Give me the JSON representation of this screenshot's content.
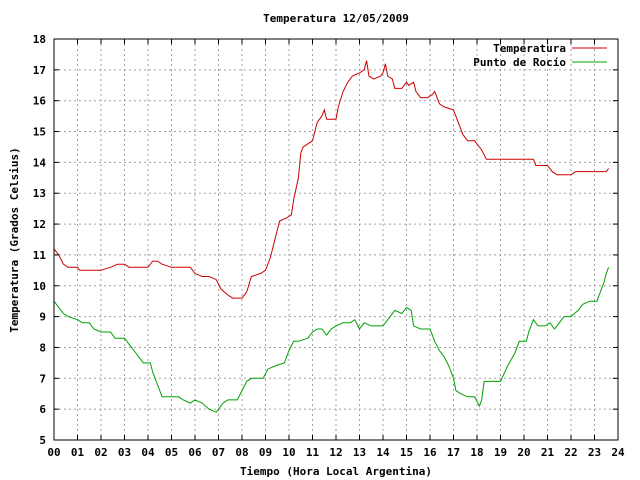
{
  "chart_data": {
    "type": "line",
    "title": "Temperatura 12/05/2009",
    "xlabel": "Tiempo (Hora Local Argentina)",
    "ylabel": "Temperatura (Grados Celsius)",
    "xlim": [
      0,
      24
    ],
    "ylim": [
      5,
      18
    ],
    "xticks": [
      "00",
      "01",
      "02",
      "03",
      "04",
      "05",
      "06",
      "07",
      "08",
      "09",
      "10",
      "11",
      "12",
      "13",
      "14",
      "15",
      "16",
      "17",
      "18",
      "19",
      "20",
      "21",
      "22",
      "23",
      "24"
    ],
    "yticks": [
      5,
      6,
      7,
      8,
      9,
      10,
      11,
      12,
      13,
      14,
      15,
      16,
      17,
      18
    ],
    "grid": true,
    "legend_position": "top-right",
    "series": [
      {
        "name": "Temperatura",
        "color": "#cc0000",
        "points": [
          [
            0,
            11.2
          ],
          [
            0.2,
            11.0
          ],
          [
            0.4,
            10.7
          ],
          [
            0.6,
            10.6
          ],
          [
            1.0,
            10.6
          ],
          [
            1.1,
            10.5
          ],
          [
            2.0,
            10.5
          ],
          [
            2.4,
            10.6
          ],
          [
            2.7,
            10.7
          ],
          [
            3.0,
            10.7
          ],
          [
            3.2,
            10.6
          ],
          [
            4.0,
            10.6
          ],
          [
            4.2,
            10.8
          ],
          [
            4.4,
            10.8
          ],
          [
            4.6,
            10.7
          ],
          [
            5.0,
            10.6
          ],
          [
            5.4,
            10.6
          ],
          [
            5.8,
            10.6
          ],
          [
            6.0,
            10.4
          ],
          [
            6.3,
            10.3
          ],
          [
            6.6,
            10.3
          ],
          [
            6.9,
            10.2
          ],
          [
            7.1,
            9.9
          ],
          [
            7.4,
            9.7
          ],
          [
            7.6,
            9.6
          ],
          [
            8.0,
            9.6
          ],
          [
            8.2,
            9.8
          ],
          [
            8.4,
            10.3
          ],
          [
            8.8,
            10.4
          ],
          [
            9.0,
            10.5
          ],
          [
            9.2,
            10.9
          ],
          [
            9.4,
            11.5
          ],
          [
            9.6,
            12.1
          ],
          [
            9.9,
            12.2
          ],
          [
            10.1,
            12.3
          ],
          [
            10.2,
            12.8
          ],
          [
            10.4,
            13.5
          ],
          [
            10.5,
            14.3
          ],
          [
            10.6,
            14.5
          ],
          [
            10.8,
            14.6
          ],
          [
            11.0,
            14.7
          ],
          [
            11.2,
            15.3
          ],
          [
            11.4,
            15.5
          ],
          [
            11.5,
            15.7
          ],
          [
            11.6,
            15.4
          ],
          [
            12.0,
            15.4
          ],
          [
            12.1,
            15.8
          ],
          [
            12.3,
            16.3
          ],
          [
            12.5,
            16.6
          ],
          [
            12.7,
            16.8
          ],
          [
            13.0,
            16.9
          ],
          [
            13.2,
            17.0
          ],
          [
            13.3,
            17.3
          ],
          [
            13.4,
            16.8
          ],
          [
            13.6,
            16.7
          ],
          [
            13.9,
            16.8
          ],
          [
            14.0,
            16.9
          ],
          [
            14.1,
            17.2
          ],
          [
            14.2,
            16.8
          ],
          [
            14.4,
            16.7
          ],
          [
            14.5,
            16.4
          ],
          [
            14.8,
            16.4
          ],
          [
            15.0,
            16.6
          ],
          [
            15.1,
            16.5
          ],
          [
            15.3,
            16.6
          ],
          [
            15.4,
            16.3
          ],
          [
            15.6,
            16.1
          ],
          [
            15.9,
            16.1
          ],
          [
            16.1,
            16.2
          ],
          [
            16.2,
            16.3
          ],
          [
            16.4,
            15.9
          ],
          [
            16.6,
            15.8
          ],
          [
            17.0,
            15.7
          ],
          [
            17.2,
            15.3
          ],
          [
            17.4,
            14.9
          ],
          [
            17.6,
            14.7
          ],
          [
            17.9,
            14.7
          ],
          [
            18.0,
            14.6
          ],
          [
            18.2,
            14.4
          ],
          [
            18.4,
            14.1
          ],
          [
            19.0,
            14.1
          ],
          [
            20.0,
            14.1
          ],
          [
            20.4,
            14.1
          ],
          [
            20.5,
            13.9
          ],
          [
            21.0,
            13.9
          ],
          [
            21.2,
            13.7
          ],
          [
            21.4,
            13.6
          ],
          [
            22.0,
            13.6
          ],
          [
            22.2,
            13.7
          ],
          [
            23.0,
            13.7
          ],
          [
            23.5,
            13.7
          ],
          [
            23.6,
            13.8
          ]
        ]
      },
      {
        "name": "Punto de Rocío",
        "color": "#00a000",
        "points": [
          [
            0,
            9.5
          ],
          [
            0.2,
            9.3
          ],
          [
            0.4,
            9.1
          ],
          [
            0.6,
            9.0
          ],
          [
            1.0,
            8.9
          ],
          [
            1.2,
            8.8
          ],
          [
            1.5,
            8.8
          ],
          [
            1.7,
            8.6
          ],
          [
            2.0,
            8.5
          ],
          [
            2.4,
            8.5
          ],
          [
            2.6,
            8.3
          ],
          [
            3.0,
            8.3
          ],
          [
            3.2,
            8.1
          ],
          [
            3.4,
            7.9
          ],
          [
            3.6,
            7.7
          ],
          [
            3.8,
            7.5
          ],
          [
            4.1,
            7.5
          ],
          [
            4.2,
            7.2
          ],
          [
            4.4,
            6.8
          ],
          [
            4.6,
            6.4
          ],
          [
            5.0,
            6.4
          ],
          [
            5.3,
            6.4
          ],
          [
            5.5,
            6.3
          ],
          [
            5.8,
            6.2
          ],
          [
            6.0,
            6.3
          ],
          [
            6.3,
            6.2
          ],
          [
            6.6,
            6.0
          ],
          [
            6.9,
            5.9
          ],
          [
            7.0,
            6.0
          ],
          [
            7.2,
            6.2
          ],
          [
            7.4,
            6.3
          ],
          [
            7.8,
            6.3
          ],
          [
            8.0,
            6.6
          ],
          [
            8.2,
            6.9
          ],
          [
            8.4,
            7.0
          ],
          [
            8.9,
            7.0
          ],
          [
            9.1,
            7.3
          ],
          [
            9.4,
            7.4
          ],
          [
            9.8,
            7.5
          ],
          [
            10.0,
            7.9
          ],
          [
            10.2,
            8.2
          ],
          [
            10.4,
            8.2
          ],
          [
            10.8,
            8.3
          ],
          [
            11.0,
            8.5
          ],
          [
            11.2,
            8.6
          ],
          [
            11.4,
            8.6
          ],
          [
            11.6,
            8.4
          ],
          [
            11.8,
            8.6
          ],
          [
            12.0,
            8.7
          ],
          [
            12.3,
            8.8
          ],
          [
            12.6,
            8.8
          ],
          [
            12.8,
            8.9
          ],
          [
            13.0,
            8.6
          ],
          [
            13.2,
            8.8
          ],
          [
            13.5,
            8.7
          ],
          [
            14.0,
            8.7
          ],
          [
            14.3,
            9.0
          ],
          [
            14.5,
            9.2
          ],
          [
            14.8,
            9.1
          ],
          [
            15.0,
            9.3
          ],
          [
            15.2,
            9.2
          ],
          [
            15.3,
            8.7
          ],
          [
            15.6,
            8.6
          ],
          [
            16.0,
            8.6
          ],
          [
            16.2,
            8.2
          ],
          [
            16.4,
            7.9
          ],
          [
            16.6,
            7.7
          ],
          [
            16.8,
            7.4
          ],
          [
            17.0,
            7.0
          ],
          [
            17.1,
            6.6
          ],
          [
            17.3,
            6.5
          ],
          [
            17.6,
            6.4
          ],
          [
            17.9,
            6.4
          ],
          [
            18.1,
            6.1
          ],
          [
            18.2,
            6.3
          ],
          [
            18.3,
            6.9
          ],
          [
            19.0,
            6.9
          ],
          [
            19.3,
            7.4
          ],
          [
            19.6,
            7.8
          ],
          [
            19.8,
            8.2
          ],
          [
            20.1,
            8.2
          ],
          [
            20.2,
            8.5
          ],
          [
            20.4,
            8.9
          ],
          [
            20.6,
            8.7
          ],
          [
            20.9,
            8.7
          ],
          [
            21.1,
            8.8
          ],
          [
            21.3,
            8.6
          ],
          [
            21.5,
            8.8
          ],
          [
            21.7,
            9.0
          ],
          [
            22.0,
            9.0
          ],
          [
            22.3,
            9.2
          ],
          [
            22.5,
            9.4
          ],
          [
            22.8,
            9.5
          ],
          [
            23.1,
            9.5
          ],
          [
            23.2,
            9.7
          ],
          [
            23.3,
            9.9
          ],
          [
            23.4,
            10.1
          ],
          [
            23.5,
            10.4
          ],
          [
            23.6,
            10.6
          ]
        ]
      }
    ]
  }
}
